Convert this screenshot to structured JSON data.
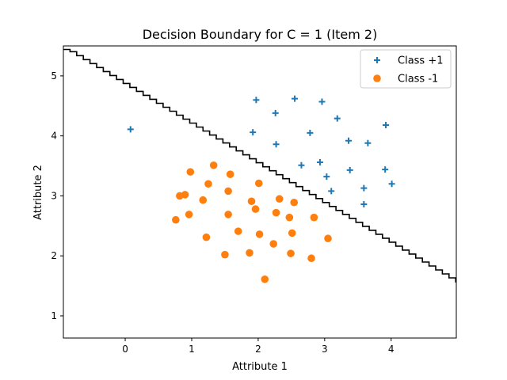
{
  "chart_data": {
    "type": "scatter",
    "title": "Decision Boundary for C = 1 (Item 2)",
    "xlabel": "Attribute 1",
    "ylabel": "Attribute 2",
    "xlim": [
      -0.93,
      4.98
    ],
    "ylim": [
      0.63,
      5.5
    ],
    "xticks": [
      0,
      1,
      2,
      3,
      4
    ],
    "yticks": [
      1,
      2,
      3,
      4,
      5
    ],
    "grid": false,
    "legend_position": "top-right",
    "series": [
      {
        "name": "Class +1",
        "marker": "plus",
        "color": "#1f77b4",
        "points": [
          [
            0.08,
            4.11
          ],
          [
            1.92,
            4.06
          ],
          [
            1.97,
            4.6
          ],
          [
            2.26,
            4.38
          ],
          [
            2.27,
            3.86
          ],
          [
            2.55,
            4.62
          ],
          [
            2.65,
            3.51
          ],
          [
            2.93,
            3.56
          ],
          [
            2.96,
            4.57
          ],
          [
            3.03,
            3.32
          ],
          [
            3.1,
            3.08
          ],
          [
            3.19,
            4.29
          ],
          [
            3.36,
            3.92
          ],
          [
            3.38,
            3.43
          ],
          [
            3.59,
            2.86
          ],
          [
            3.59,
            3.13
          ],
          [
            3.65,
            3.88
          ],
          [
            3.91,
            3.44
          ],
          [
            3.92,
            4.18
          ],
          [
            4.01,
            3.2
          ],
          [
            2.78,
            4.05
          ]
        ]
      },
      {
        "name": "Class -1",
        "marker": "circle",
        "color": "#ff7f0e",
        "points": [
          [
            0.76,
            2.6
          ],
          [
            0.82,
            3.0
          ],
          [
            0.9,
            3.02
          ],
          [
            0.96,
            2.69
          ],
          [
            0.98,
            3.4
          ],
          [
            1.17,
            2.93
          ],
          [
            1.22,
            2.31
          ],
          [
            1.25,
            3.2
          ],
          [
            1.33,
            3.51
          ],
          [
            1.5,
            2.02
          ],
          [
            1.55,
            3.08
          ],
          [
            1.55,
            2.69
          ],
          [
            1.58,
            3.36
          ],
          [
            1.7,
            2.41
          ],
          [
            1.87,
            2.05
          ],
          [
            1.9,
            2.91
          ],
          [
            1.96,
            2.78
          ],
          [
            2.01,
            3.21
          ],
          [
            2.02,
            2.36
          ],
          [
            2.1,
            1.61
          ],
          [
            2.23,
            2.2
          ],
          [
            2.27,
            2.72
          ],
          [
            2.32,
            2.95
          ],
          [
            2.47,
            2.64
          ],
          [
            2.49,
            2.04
          ],
          [
            2.51,
            2.38
          ],
          [
            2.54,
            2.89
          ],
          [
            2.8,
            1.96
          ],
          [
            2.84,
            2.64
          ],
          [
            3.05,
            2.29
          ]
        ]
      }
    ],
    "boundary": {
      "color": "#000000",
      "points": [
        [
          -0.93,
          5.47
        ],
        [
          4.98,
          1.56
        ]
      ]
    }
  }
}
